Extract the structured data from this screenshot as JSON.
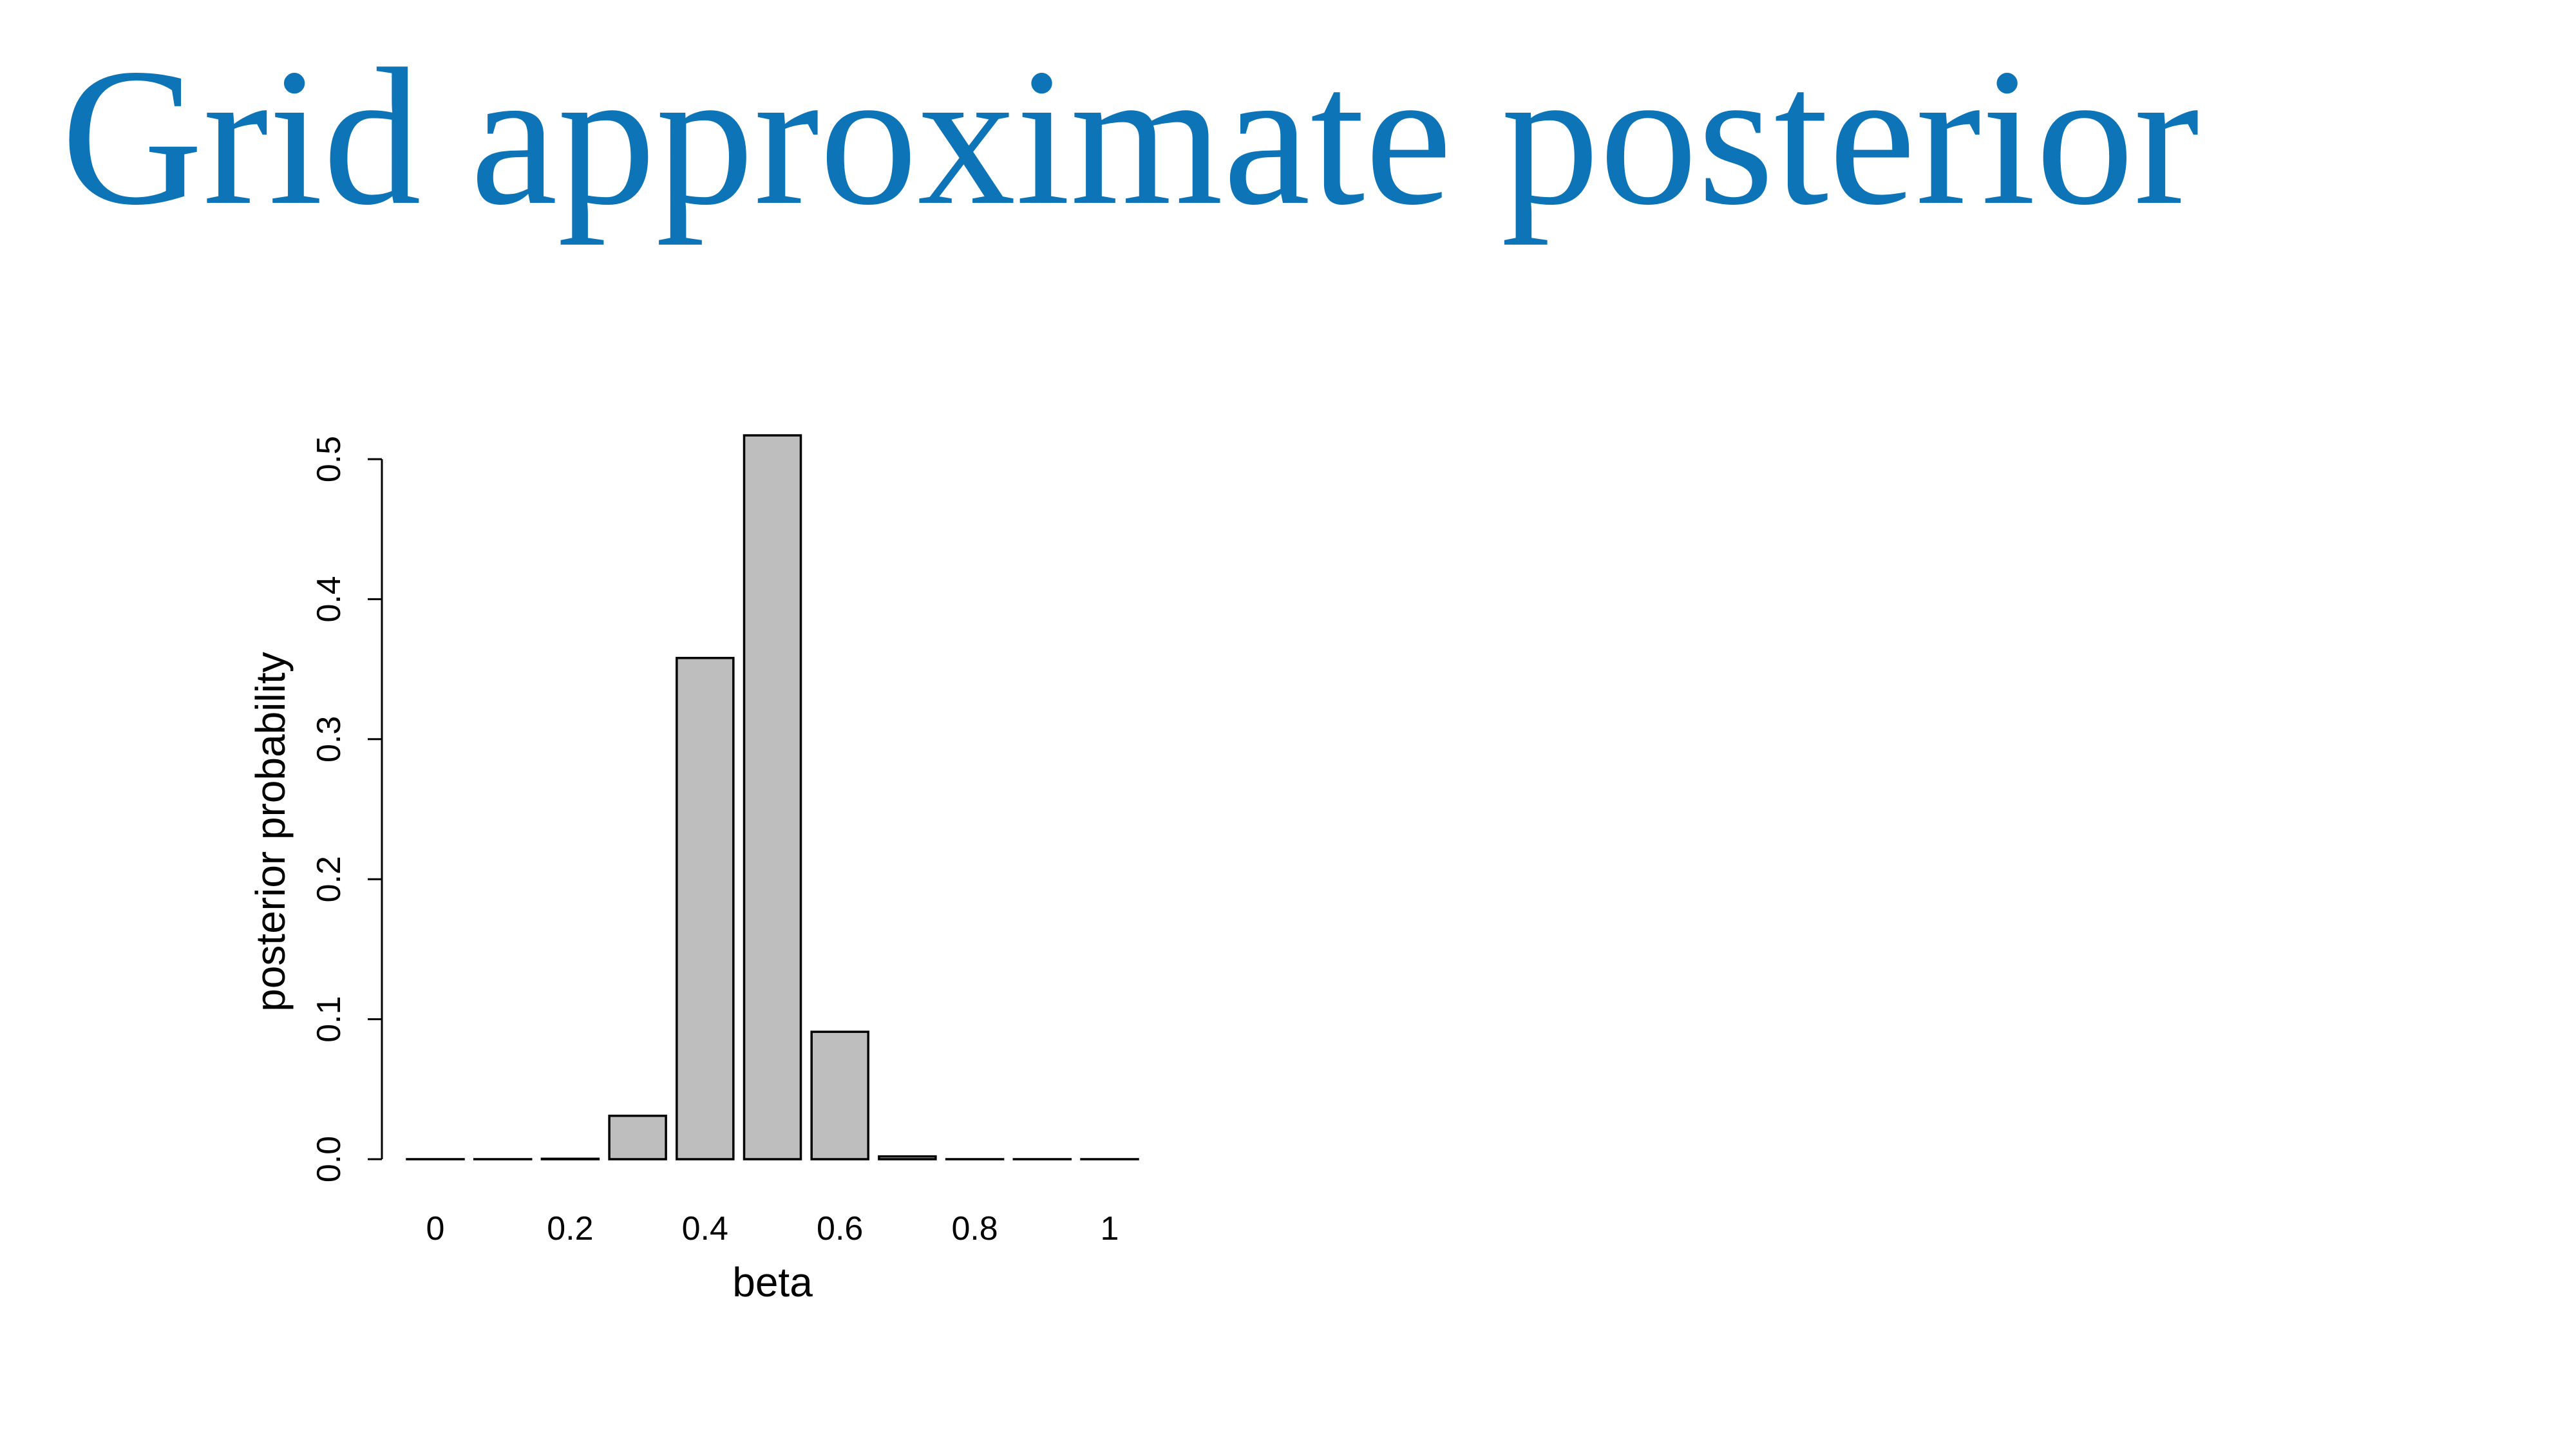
{
  "slide": {
    "title": "Grid approximate posterior",
    "title_color": "#0d74b8"
  },
  "chart_data": {
    "type": "bar",
    "categories": [
      "0",
      "0.1",
      "0.2",
      "0.3",
      "0.4",
      "0.5",
      "0.6",
      "0.7",
      "0.8",
      "0.9",
      "1"
    ],
    "values": [
      0.0,
      0.0,
      0.0003,
      0.031,
      0.358,
      0.517,
      0.091,
      0.002,
      0.0,
      0.0,
      0.0
    ],
    "x_tick_labels": [
      "0",
      "0.2",
      "0.4",
      "0.6",
      "0.8",
      "1"
    ],
    "x_tick_indices": [
      0,
      2,
      4,
      6,
      8,
      10
    ],
    "y_ticks": [
      0.0,
      0.1,
      0.2,
      0.3,
      0.4,
      0.5
    ],
    "y_tick_labels": [
      "0.0",
      "0.1",
      "0.2",
      "0.3",
      "0.4",
      "0.5"
    ],
    "xlabel": "beta",
    "ylabel": "posterior probability",
    "ylim": [
      0,
      0.5
    ],
    "bar_fill": "#bebebe",
    "bar_stroke": "#000000",
    "grid": false,
    "legend": "none"
  }
}
